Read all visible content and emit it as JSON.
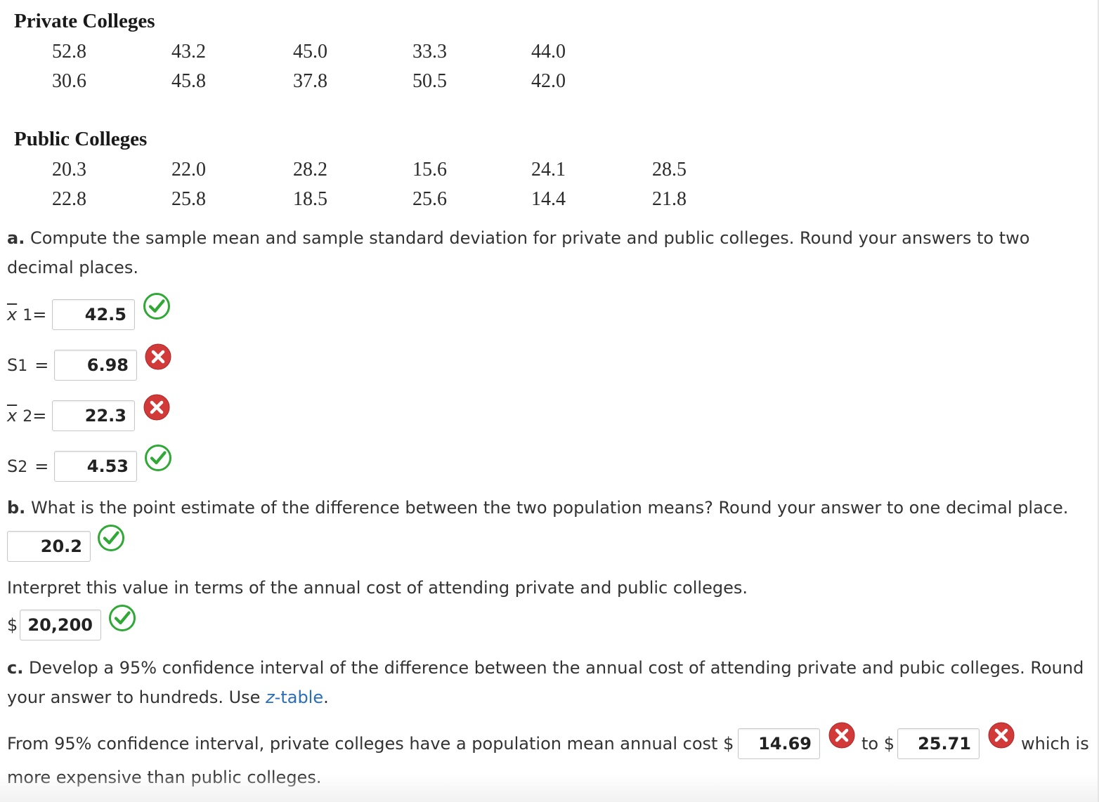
{
  "private": {
    "heading": "Private Colleges",
    "rows": [
      [
        "52.8",
        "43.2",
        "45.0",
        "33.3",
        "44.0"
      ],
      [
        "30.6",
        "45.8",
        "37.8",
        "50.5",
        "42.0"
      ]
    ]
  },
  "public": {
    "heading": "Public Colleges",
    "rows": [
      [
        "20.3",
        "22.0",
        "28.2",
        "15.6",
        "24.1",
        "28.5"
      ],
      [
        "22.8",
        "25.8",
        "18.5",
        "25.6",
        "14.4",
        "21.8"
      ]
    ]
  },
  "part_a": {
    "label": "a.",
    "text1": "Compute the sample mean and sample standard deviation for private and public colleges. Round your answers to two",
    "text2": "decimal places.",
    "xbar1": {
      "sym": "x",
      "sub": "1",
      "eq": "=",
      "value": "42.5",
      "status": "correct"
    },
    "s1": {
      "sym": "S",
      "sub": "1",
      "eq": "=",
      "value": "6.98",
      "status": "incorrect"
    },
    "xbar2": {
      "sym": "x",
      "sub": "2",
      "eq": "=",
      "value": "22.3",
      "status": "incorrect"
    },
    "s2": {
      "sym": "S",
      "sub": "2",
      "eq": "=",
      "value": "4.53",
      "status": "correct"
    }
  },
  "part_b": {
    "label": "b.",
    "text": "What is the point estimate of the difference between the two population means? Round your answer to one decimal place.",
    "value": "20.2",
    "interpret": "Interpret this value in terms of the annual cost of attending private and public colleges.",
    "currency": "$",
    "value2": "20,200"
  },
  "part_c": {
    "label": "c.",
    "text1": "Develop a 95% confidence interval of the difference between the annual cost of attending private and pubic colleges. Round",
    "text2_pre": "your answer to hundreds. Use ",
    "link_italic": "z",
    "link_rest": "-table",
    "text2_post": ".",
    "sentence_pre": "From 95% confidence interval, private colleges have a population mean annual cost $",
    "value_low": "14.69",
    "to_text": "to $",
    "value_high": "25.71",
    "which_is": "which is",
    "sentence_end": "more expensive than public colleges."
  },
  "colors": {
    "correct": "#2fa836",
    "incorrect": "#d23a3a",
    "link": "#2a6ebb"
  }
}
